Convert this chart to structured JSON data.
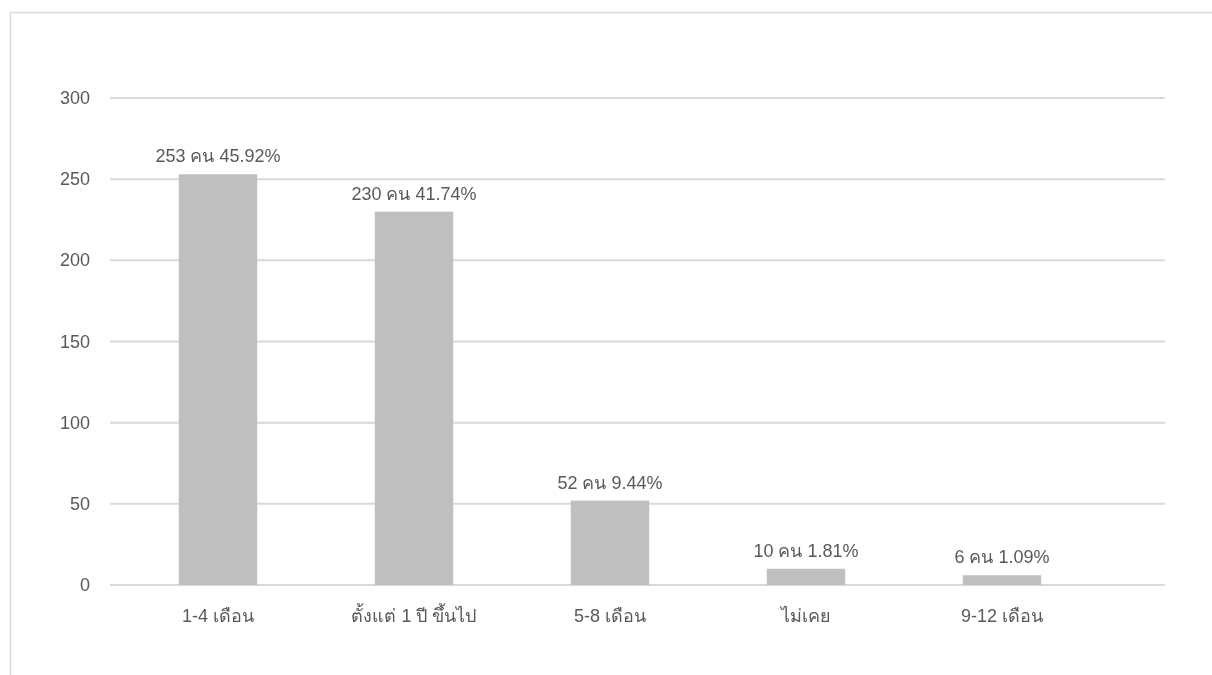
{
  "chart_data": {
    "type": "bar",
    "categories": [
      "1-4 เดือน",
      "ตั้งแต่ 1 ปี ขึ้นไป",
      "5-8 เดือน",
      "ไม่เคย",
      "9-12 เดือน"
    ],
    "values": [
      253,
      230,
      52,
      10,
      6
    ],
    "value_labels": [
      "253 คน 45.92%",
      "230 คน 41.74%",
      "52 คน 9.44%",
      "10 คน 1.81%",
      "6 คน 1.09%"
    ],
    "color": "#bfbfbf",
    "ylim": [
      0,
      300
    ],
    "yticks": [
      0,
      50,
      100,
      150,
      200,
      250,
      300
    ],
    "grid": "y"
  }
}
